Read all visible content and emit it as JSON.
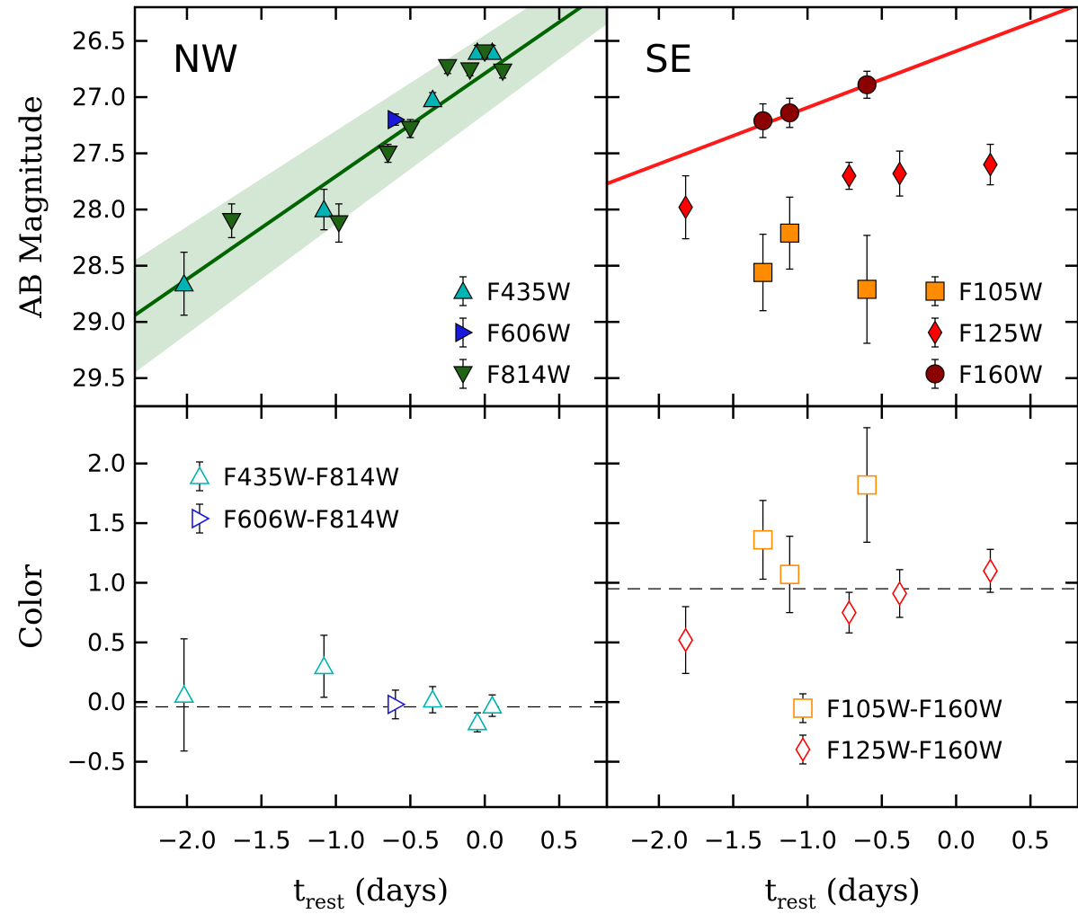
{
  "chart_data": [
    {
      "panel": "NW-magnitude",
      "type": "scatter",
      "title": "NW",
      "ylabel": "AB Magnitude",
      "xlim": [
        -2.35,
        0.82
      ],
      "ylim": [
        29.75,
        26.2
      ],
      "yticks": [
        26.5,
        27.0,
        27.5,
        28.0,
        28.5,
        29.0,
        29.5
      ],
      "ytick_labels": [
        "26.5",
        "27.0",
        "27.5",
        "28.0",
        "28.5",
        "29.0",
        "29.5"
      ],
      "fit": {
        "color": "#006400",
        "band_color": "#cfe3cf",
        "x": [
          -2.35,
          0.82
        ],
        "y": [
          28.94,
          26.04
        ],
        "band_upper": [
          28.45,
          25.75
        ],
        "band_lower": [
          29.45,
          26.35
        ]
      },
      "legend": {
        "position": "bottom-right",
        "entries": [
          "F435W",
          "F606W",
          "F814W"
        ]
      },
      "series": [
        {
          "name": "F435W",
          "marker": "triangle-up",
          "color": "#00b4b4",
          "x": [
            -2.02,
            -1.08,
            -0.35,
            -0.05,
            0.05
          ],
          "y": [
            28.66,
            28.0,
            27.02,
            26.6,
            26.6
          ],
          "err": [
            0.28,
            0.18,
            0.06,
            0.06,
            0.06
          ]
        },
        {
          "name": "F606W",
          "marker": "triangle-right",
          "color": "#1a1adc",
          "x": [
            -0.6
          ],
          "y": [
            27.2
          ],
          "err": [
            0.05
          ]
        },
        {
          "name": "F814W",
          "marker": "triangle-down",
          "color": "#1e6414",
          "x": [
            -1.7,
            -0.98,
            -0.65,
            -0.5,
            -0.25,
            -0.1,
            0.0,
            0.12
          ],
          "y": [
            28.1,
            28.12,
            27.5,
            27.28,
            26.73,
            26.76,
            26.6,
            26.77
          ],
          "err": [
            0.15,
            0.17,
            0.08,
            0.08,
            0.06,
            0.05,
            0.05,
            0.06
          ]
        }
      ]
    },
    {
      "panel": "SE-magnitude",
      "type": "scatter",
      "title": "SE",
      "xlim": [
        -2.35,
        0.82
      ],
      "ylim": [
        29.75,
        26.2
      ],
      "fit": {
        "color": "#ff1a1a",
        "x": [
          -2.35,
          0.82
        ],
        "y": [
          27.77,
          26.18
        ]
      },
      "legend": {
        "position": "bottom-right",
        "entries": [
          "F105W",
          "F125W",
          "F160W"
        ]
      },
      "series": [
        {
          "name": "F105W",
          "marker": "square",
          "color": "#ff8c00",
          "x": [
            -1.3,
            -1.12,
            -0.6
          ],
          "y": [
            28.56,
            28.21,
            28.71
          ],
          "err": [
            0.34,
            0.32,
            0.48
          ]
        },
        {
          "name": "F125W",
          "marker": "diamond",
          "color": "#ff0000",
          "x": [
            -1.82,
            -0.72,
            -0.38,
            0.23
          ],
          "y": [
            27.98,
            27.7,
            27.68,
            27.6
          ],
          "err": [
            0.28,
            0.12,
            0.2,
            0.18
          ]
        },
        {
          "name": "F160W",
          "marker": "circle",
          "color": "#8b0000",
          "x": [
            -1.3,
            -1.12,
            -0.6
          ],
          "y": [
            27.21,
            27.14,
            26.89
          ],
          "err": [
            0.15,
            0.13,
            0.12
          ]
        }
      ]
    },
    {
      "panel": "NW-color",
      "type": "scatter",
      "ylabel": "Color",
      "xlabel_main": "t",
      "xlabel_sub": "rest",
      "xlabel_unit": " (days)",
      "xlim": [
        -2.35,
        0.82
      ],
      "ylim": [
        -0.88,
        2.48
      ],
      "xticks": [
        -2.0,
        -1.5,
        -1.0,
        -0.5,
        0.0,
        0.5
      ],
      "xtick_labels": [
        "−2.0",
        "−1.5",
        "−1.0",
        "−0.5",
        "0.0",
        "0.5"
      ],
      "yticks": [
        -0.5,
        0.0,
        0.5,
        1.0,
        1.5,
        2.0
      ],
      "ytick_labels": [
        "−0.5",
        "0.0",
        "0.5",
        "1.0",
        "1.5",
        "2.0"
      ],
      "reference_line": {
        "y": -0.04,
        "style": "dashed"
      },
      "legend": {
        "position": "top-left",
        "entries": [
          "F435W-F814W",
          "F606W-F814W"
        ]
      },
      "series": [
        {
          "name": "F435W-F814W",
          "marker": "triangle-up-open",
          "color": "#00b4b4",
          "x": [
            -2.02,
            -1.08,
            -0.35,
            -0.05,
            0.05
          ],
          "y": [
            0.06,
            0.3,
            0.02,
            -0.17,
            -0.03
          ],
          "err": [
            0.47,
            0.26,
            0.11,
            0.08,
            0.09
          ]
        },
        {
          "name": "F606W-F814W",
          "marker": "triangle-right-open",
          "color": "#1a1adc",
          "x": [
            -0.6
          ],
          "y": [
            -0.02
          ],
          "err": [
            0.12
          ]
        }
      ]
    },
    {
      "panel": "SE-color",
      "type": "scatter",
      "xlabel_main": "t",
      "xlabel_sub": "rest",
      "xlabel_unit": " (days)",
      "xlim": [
        -2.35,
        0.82
      ],
      "ylim": [
        -0.88,
        2.48
      ],
      "xticks": [
        -2.0,
        -1.5,
        -1.0,
        -0.5,
        0.0,
        0.5
      ],
      "xtick_labels": [
        "−2.0",
        "−1.5",
        "−1.0",
        "−0.5",
        "0.0",
        "0.5"
      ],
      "reference_line": {
        "y": 0.95,
        "style": "dashed"
      },
      "legend": {
        "position": "bottom-right",
        "entries": [
          "F105W-F160W",
          "F125W-F160W"
        ]
      },
      "series": [
        {
          "name": "F105W-F160W",
          "marker": "square-open",
          "color": "#ff8c00",
          "x": [
            -1.3,
            -1.12,
            -0.6
          ],
          "y": [
            1.36,
            1.07,
            1.82
          ],
          "err": [
            0.33,
            0.32,
            0.48
          ]
        },
        {
          "name": "F125W-F160W",
          "marker": "diamond-open",
          "color": "#ff0000",
          "x": [
            -1.82,
            -0.72,
            -0.38,
            0.23
          ],
          "y": [
            0.52,
            0.75,
            0.91,
            1.1
          ],
          "err": [
            0.28,
            0.17,
            0.2,
            0.18
          ]
        }
      ]
    }
  ]
}
